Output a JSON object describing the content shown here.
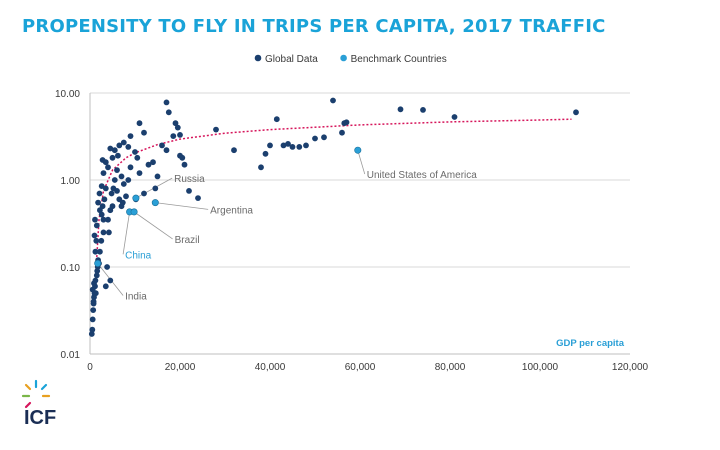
{
  "title": "PROPENSITY TO FLY IN TRIPS PER CAPITA, 2017 TRAFFIC",
  "logo": {
    "text": "ICF"
  },
  "colors": {
    "title": "#1aa3d8",
    "global": "#1b3f6e",
    "benchmark": "#2a9fd6",
    "trend": "#d6155b",
    "axis_text": "#3a3a3a",
    "grid": "#d9d9d9",
    "annotation": "#6b6b6b"
  },
  "chart_data": {
    "type": "scatter",
    "title": "PROPENSITY TO FLY IN TRIPS PER CAPITA, 2017 TRAFFIC",
    "xlabel": "GDP per capita",
    "ylabel": "",
    "xlim": [
      0,
      120000
    ],
    "ylim": [
      0.01,
      10
    ],
    "yscale": "log",
    "x_ticks": [
      0,
      20000,
      40000,
      60000,
      80000,
      100000,
      120000
    ],
    "x_tick_labels": [
      "0",
      "20,000",
      "40,000",
      "60,000",
      "80,000",
      "100,000",
      "120,000"
    ],
    "y_ticks": [
      0.01,
      0.1,
      1,
      10
    ],
    "y_tick_labels": [
      "0.01",
      "0.10",
      "1.00",
      "10.00"
    ],
    "grid": "horizontal",
    "legend_position": "top-center",
    "series": [
      {
        "name": "Global Data",
        "points": [
          [
            400,
            0.017
          ],
          [
            500,
            0.019
          ],
          [
            600,
            0.025
          ],
          [
            700,
            0.032
          ],
          [
            800,
            0.04
          ],
          [
            900,
            0.045
          ],
          [
            1000,
            0.05
          ],
          [
            1100,
            0.06
          ],
          [
            600,
            0.055
          ],
          [
            800,
            0.038
          ],
          [
            900,
            0.065
          ],
          [
            1200,
            0.07
          ],
          [
            1300,
            0.05
          ],
          [
            1500,
            0.08
          ],
          [
            1600,
            0.09
          ],
          [
            1700,
            0.1
          ],
          [
            1800,
            0.12
          ],
          [
            1200,
            0.15
          ],
          [
            1400,
            0.2
          ],
          [
            1000,
            0.23
          ],
          [
            1500,
            0.3
          ],
          [
            1100,
            0.35
          ],
          [
            2000,
            0.11
          ],
          [
            2200,
            0.15
          ],
          [
            2500,
            0.2
          ],
          [
            3000,
            0.25
          ],
          [
            3500,
            0.06
          ],
          [
            4500,
            0.07
          ],
          [
            3800,
            0.1
          ],
          [
            2200,
            0.45
          ],
          [
            1800,
            0.55
          ],
          [
            2600,
            0.4
          ],
          [
            2800,
            0.5
          ],
          [
            3200,
            0.6
          ],
          [
            2100,
            0.7
          ],
          [
            2600,
            0.85
          ],
          [
            3500,
            0.8
          ],
          [
            3000,
            0.35
          ],
          [
            4000,
            0.35
          ],
          [
            4200,
            0.25
          ],
          [
            4500,
            0.45
          ],
          [
            5000,
            0.5
          ],
          [
            4800,
            0.7
          ],
          [
            5200,
            0.8
          ],
          [
            5500,
            1.0
          ],
          [
            6000,
            0.75
          ],
          [
            6500,
            0.6
          ],
          [
            7000,
            0.5
          ],
          [
            3000,
            1.2
          ],
          [
            4000,
            1.4
          ],
          [
            3500,
            1.6
          ],
          [
            2800,
            1.7
          ],
          [
            5000,
            1.8
          ],
          [
            6000,
            1.3
          ],
          [
            7000,
            1.1
          ],
          [
            7500,
            0.9
          ],
          [
            8000,
            0.65
          ],
          [
            8500,
            1.0
          ],
          [
            9000,
            1.4
          ],
          [
            4500,
            2.3
          ],
          [
            5500,
            2.2
          ],
          [
            6500,
            2.5
          ],
          [
            7500,
            2.7
          ],
          [
            8500,
            2.4
          ],
          [
            10000,
            2.1
          ],
          [
            10500,
            1.8
          ],
          [
            11000,
            1.2
          ],
          [
            12000,
            0.7
          ],
          [
            13000,
            1.5
          ],
          [
            14000,
            1.6
          ],
          [
            14500,
            0.8
          ],
          [
            15000,
            1.1
          ],
          [
            16000,
            2.5
          ],
          [
            17000,
            2.2
          ],
          [
            11000,
            4.5
          ],
          [
            12000,
            3.5
          ],
          [
            9000,
            3.2
          ],
          [
            17000,
            7.8
          ],
          [
            17500,
            6.0
          ],
          [
            18500,
            3.2
          ],
          [
            19000,
            4.5
          ],
          [
            19500,
            4.0
          ],
          [
            20000,
            3.3
          ],
          [
            20500,
            1.8
          ],
          [
            21000,
            1.5
          ],
          [
            20000,
            1.9
          ],
          [
            22000,
            0.75
          ],
          [
            24000,
            0.62
          ],
          [
            28000,
            3.8
          ],
          [
            32000,
            2.2
          ],
          [
            38000,
            1.4
          ],
          [
            39000,
            2.0
          ],
          [
            40000,
            2.5
          ],
          [
            41500,
            5.0
          ],
          [
            43000,
            2.5
          ],
          [
            44000,
            2.6
          ],
          [
            45000,
            2.4
          ],
          [
            46500,
            2.4
          ],
          [
            48000,
            2.5
          ],
          [
            50000,
            3.0
          ],
          [
            52000,
            3.1
          ],
          [
            54000,
            8.2
          ],
          [
            56000,
            3.5
          ],
          [
            56500,
            4.5
          ],
          [
            57000,
            4.6
          ],
          [
            69000,
            6.5
          ],
          [
            74000,
            6.4
          ],
          [
            81000,
            5.3
          ],
          [
            108000,
            6.0
          ],
          [
            6200,
            1.9
          ],
          [
            7300,
            0.55
          ],
          [
            10200,
            0.6
          ]
        ]
      },
      {
        "name": "Benchmark Countries",
        "points": [
          [
            1700,
            0.11
          ],
          [
            8800,
            0.43
          ],
          [
            9800,
            0.43
          ],
          [
            10200,
            0.62
          ],
          [
            14500,
            0.55
          ],
          [
            59500,
            2.2
          ]
        ]
      }
    ],
    "trendline": {
      "type": "logarithmic",
      "points": [
        [
          1500,
          0.13
        ],
        [
          2000,
          0.35
        ],
        [
          3000,
          0.75
        ],
        [
          5000,
          1.3
        ],
        [
          8000,
          1.8
        ],
        [
          10000,
          2.05
        ],
        [
          15000,
          2.55
        ],
        [
          20000,
          2.95
        ],
        [
          30000,
          3.45
        ],
        [
          40000,
          3.8
        ],
        [
          60000,
          4.3
        ],
        [
          80000,
          4.65
        ],
        [
          100000,
          4.9
        ],
        [
          107000,
          5.0
        ]
      ]
    },
    "annotations": [
      {
        "label": "Russia",
        "point": [
          10200,
          0.62
        ],
        "at": [
          18700,
          1.05
        ],
        "color": "annotation"
      },
      {
        "label": "Argentina",
        "point": [
          14500,
          0.55
        ],
        "at": [
          26700,
          0.46
        ],
        "color": "annotation"
      },
      {
        "label": "Brazil",
        "point": [
          9800,
          0.43
        ],
        "at": [
          18800,
          0.21
        ],
        "color": "annotation"
      },
      {
        "label": "China",
        "point": [
          8800,
          0.43
        ],
        "at": [
          7800,
          0.14
        ],
        "color": "benchmark"
      },
      {
        "label": "India",
        "point": [
          1700,
          0.11
        ],
        "at": [
          7800,
          0.047
        ],
        "color": "annotation"
      },
      {
        "label": "United States of America",
        "point": [
          59500,
          2.2
        ],
        "at": [
          61500,
          1.17
        ],
        "color": "annotation"
      }
    ]
  }
}
